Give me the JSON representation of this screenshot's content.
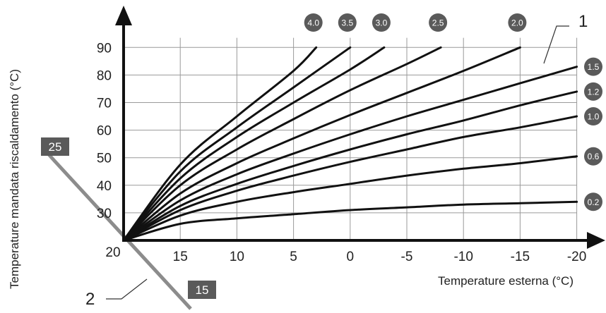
{
  "chart_data": {
    "type": "line",
    "title": "",
    "xlabel": "Temperature esterna (°C)",
    "ylabel": "Temperature mandata riscaldamento (°C)",
    "x_axis_direction": "reversed",
    "xlim": [
      20,
      -21
    ],
    "ylim": [
      20,
      96
    ],
    "x_ticks": [
      15,
      10,
      5,
      0,
      -5,
      -10,
      -15,
      -20
    ],
    "x_tick_labels": [
      "15",
      "10",
      "5",
      "0",
      "-5",
      "-10",
      "-15",
      "-20"
    ],
    "y_ticks": [
      30,
      40,
      50,
      60,
      70,
      80,
      90
    ],
    "y_tick_labels": [
      "30",
      "40",
      "50",
      "60",
      "70",
      "80",
      "90"
    ],
    "origin_label": "20",
    "grid": true,
    "series": [
      {
        "name": "0.2",
        "x": [
          20,
          15,
          10,
          5,
          0,
          -5,
          -10,
          -15,
          -20
        ],
        "y": [
          20,
          26,
          28,
          29.5,
          31,
          32,
          33,
          33.5,
          34
        ]
      },
      {
        "name": "0.6",
        "x": [
          20,
          15,
          10,
          5,
          0,
          -5,
          -10,
          -15,
          -20
        ],
        "y": [
          20,
          29,
          34,
          37.5,
          40.5,
          43.5,
          46,
          48,
          50.5
        ]
      },
      {
        "name": "1.0",
        "x": [
          20,
          15,
          10,
          5,
          0,
          -5,
          -10,
          -15,
          -20
        ],
        "y": [
          20,
          31,
          38,
          43.5,
          48.5,
          53,
          57.5,
          61,
          65
        ]
      },
      {
        "name": "1.2",
        "x": [
          20,
          15,
          10,
          5,
          0,
          -5,
          -10,
          -15,
          -20
        ],
        "y": [
          20,
          32.5,
          40.5,
          47,
          53,
          58.5,
          63.5,
          69,
          74
        ]
      },
      {
        "name": "1.5",
        "x": [
          20,
          15,
          10,
          5,
          0,
          -5,
          -10,
          -15,
          -20
        ],
        "y": [
          20,
          34.5,
          44,
          51.5,
          58.5,
          65,
          71,
          77,
          83
        ]
      },
      {
        "name": "2.0",
        "x": [
          20,
          15,
          10,
          5,
          0,
          -5,
          -10,
          -15
        ],
        "y": [
          20,
          37,
          48,
          57,
          65.5,
          73.5,
          81.5,
          90
        ]
      },
      {
        "name": "2.5",
        "x": [
          20,
          15,
          10,
          5,
          0,
          -5,
          -8
        ],
        "y": [
          20,
          40,
          53,
          64,
          74.5,
          84,
          90
        ]
      },
      {
        "name": "3.0",
        "x": [
          20,
          15,
          10,
          5,
          0,
          -3
        ],
        "y": [
          20,
          42.5,
          57.5,
          70,
          82,
          90
        ]
      },
      {
        "name": "3.5",
        "x": [
          20,
          15,
          10,
          5,
          0
        ],
        "y": [
          20,
          45,
          61,
          75.5,
          90
        ]
      },
      {
        "name": "4.0",
        "x": [
          20,
          15,
          10,
          5,
          3
        ],
        "y": [
          20,
          47.5,
          65,
          81.5,
          90
        ]
      }
    ],
    "annotations": [
      {
        "label": "1",
        "points_to": "1.5"
      },
      {
        "label": "2",
        "points_to": "room-temperature-offset-axis"
      }
    ],
    "room_temperature_axis": {
      "top_label": "25",
      "bottom_label": "15"
    }
  },
  "colors": {
    "curve": "#111111",
    "axis": "#111111",
    "grid": "#9a9a9a",
    "badge": "#5a5a5a",
    "offset_axis": "#8c8c8c"
  }
}
